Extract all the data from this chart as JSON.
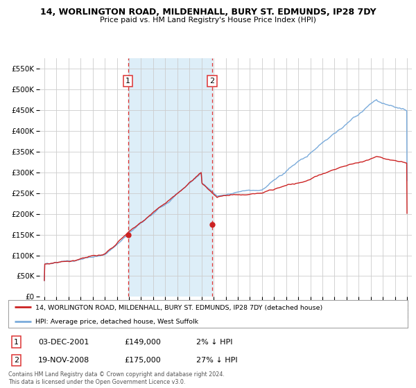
{
  "title": "14, WORLINGTON ROAD, MILDENHALL, BURY ST. EDMUNDS, IP28 7DY",
  "subtitle": "Price paid vs. HM Land Registry's House Price Index (HPI)",
  "legend_line1": "14, WORLINGTON ROAD, MILDENHALL, BURY ST. EDMUNDS, IP28 7DY (detached house)",
  "legend_line2": "HPI: Average price, detached house, West Suffolk",
  "annotation1_date": "03-DEC-2001",
  "annotation1_price": "£149,000",
  "annotation1_hpi": "2% ↓ HPI",
  "annotation2_date": "19-NOV-2008",
  "annotation2_price": "£175,000",
  "annotation2_hpi": "27% ↓ HPI",
  "purchase1_x": 2001.917,
  "purchase1_y": 149000,
  "purchase2_x": 2008.883,
  "purchase2_y": 175000,
  "vline1_x": 2001.917,
  "vline2_x": 2008.883,
  "shade_start": 2001.917,
  "shade_end": 2008.883,
  "ylim": [
    0,
    575000
  ],
  "xlim_start": 1994.6,
  "xlim_end": 2025.4,
  "hpi_color": "#7aabdb",
  "price_color": "#cc2222",
  "background_color": "#ffffff",
  "grid_color": "#cccccc",
  "shade_color": "#ddeef8",
  "vline_color": "#dd3333",
  "footer_text": "Contains HM Land Registry data © Crown copyright and database right 2024.\nThis data is licensed under the Open Government Licence v3.0."
}
